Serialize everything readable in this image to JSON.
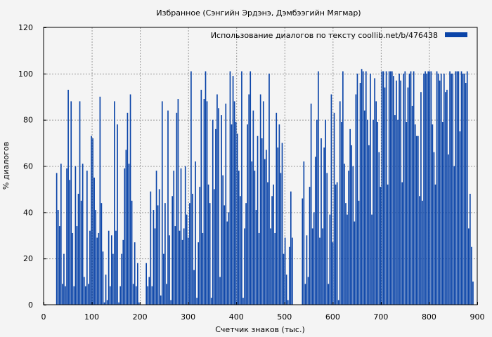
{
  "chart_data": {
    "type": "bar",
    "title": "Избранное (Сэнгийн Эрдэнэ, Дэмбээгийн Мягмар)",
    "xlabel": "Счетчик знаков (тыс.)",
    "ylabel": "% диалогов",
    "xlim": [
      0,
      900
    ],
    "ylim": [
      0,
      120
    ],
    "x_ticks": [
      0,
      100,
      200,
      300,
      400,
      500,
      600,
      700,
      800,
      900
    ],
    "y_ticks": [
      0,
      20,
      40,
      60,
      80,
      100,
      120
    ],
    "grid": true,
    "legend_position": "top-right",
    "bar_color": "#0a44a8",
    "series": [
      {
        "name": "Использование диалогов по тексту  coollib.net/b/476438",
        "x_start": 26,
        "x_step": 3,
        "values": [
          57,
          41,
          34,
          61,
          9,
          22,
          8,
          59,
          93,
          54,
          88,
          31,
          8,
          60,
          34,
          48,
          88,
          45,
          61,
          12,
          8,
          58,
          9,
          32,
          73,
          72,
          55,
          41,
          29,
          31,
          90,
          44,
          23,
          1,
          13,
          2,
          32,
          8,
          30,
          22,
          88,
          32,
          78,
          1,
          8,
          22,
          28,
          59,
          67,
          83,
          61,
          91,
          45,
          9,
          27,
          8,
          18,
          1,
          0,
          0,
          0,
          0,
          18,
          8,
          12,
          49,
          8,
          41,
          33,
          58,
          43,
          50,
          4,
          88,
          22,
          44,
          9,
          84,
          30,
          2,
          47,
          58,
          34,
          83,
          89,
          32,
          59,
          28,
          33,
          60,
          39,
          29,
          44,
          101,
          48,
          15,
          62,
          3,
          27,
          51,
          93,
          31,
          89,
          101,
          88,
          52,
          44,
          3,
          80,
          50,
          76,
          91,
          85,
          12,
          82,
          56,
          43,
          87,
          36,
          40,
          101,
          78,
          99,
          88,
          79,
          74,
          58,
          47,
          101,
          3,
          33,
          44,
          78,
          91,
          101,
          62,
          84,
          58,
          41,
          73,
          31,
          91,
          72,
          88,
          63,
          67,
          53,
          100,
          33,
          47,
          52,
          31,
          83,
          68,
          78,
          57,
          70,
          22,
          29,
          13,
          2,
          25,
          49,
          29,
          0,
          0,
          0,
          0,
          0,
          0,
          46,
          62,
          9,
          30,
          12,
          51,
          87,
          33,
          40,
          64,
          80,
          101,
          29,
          72,
          33,
          68,
          80,
          57,
          9,
          39,
          91,
          27,
          83,
          52,
          53,
          2,
          88,
          79,
          101,
          61,
          44,
          39,
          58,
          76,
          69,
          60,
          36,
          91,
          100,
          45,
          96,
          102,
          101,
          84,
          101,
          80,
          69,
          100,
          39,
          80,
          98,
          88,
          79,
          66,
          51,
          101,
          101,
          94,
          101,
          52,
          101,
          101,
          101,
          99,
          82,
          97,
          80,
          100,
          97,
          53,
          100,
          101,
          79,
          94,
          100,
          101,
          86,
          101,
          78,
          73,
          73,
          47,
          92,
          45,
          100,
          101,
          100,
          101,
          101,
          101,
          78,
          66,
          52,
          101,
          100,
          97,
          100,
          79,
          100,
          92,
          93,
          65,
          101,
          100,
          100,
          60,
          101,
          101,
          101,
          75,
          101,
          100,
          100,
          96,
          101,
          33,
          48,
          25,
          10
        ]
      }
    ]
  }
}
